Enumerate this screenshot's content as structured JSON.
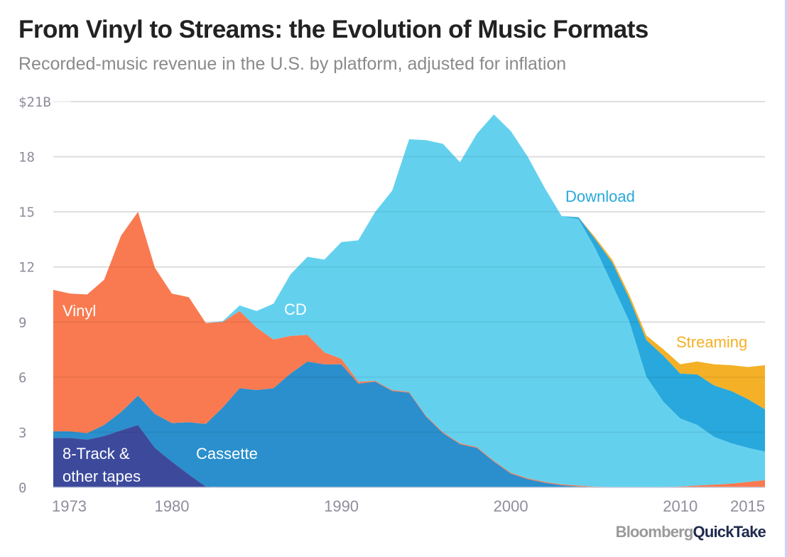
{
  "header": {
    "title": "From Vinyl to Streams: the Evolution of Music Formats",
    "subtitle": "Recorded-music revenue in the U.S. by platform, adjusted for inflation"
  },
  "branding": {
    "bloomberg": "Bloomberg",
    "quicktake": "QuickTake"
  },
  "chart_data": {
    "type": "area",
    "stacked": true,
    "title": "From Vinyl to Streams: the Evolution of Music Formats",
    "subtitle": "Recorded-music revenue in the U.S. by platform, adjusted for inflation",
    "xlabel": "",
    "ylabel": "",
    "xlim": [
      1973,
      2015
    ],
    "ylim": [
      0,
      21
    ],
    "grid": true,
    "y_ticks": [
      {
        "value": 0,
        "label": "0"
      },
      {
        "value": 3,
        "label": "3"
      },
      {
        "value": 6,
        "label": "6"
      },
      {
        "value": 9,
        "label": "9"
      },
      {
        "value": 12,
        "label": "12"
      },
      {
        "value": 15,
        "label": "15"
      },
      {
        "value": 18,
        "label": "18"
      },
      {
        "value": 21,
        "label": "$21B"
      }
    ],
    "x_ticks": [
      {
        "value": 1973,
        "label": "1973"
      },
      {
        "value": 1980,
        "label": "1980"
      },
      {
        "value": 1990,
        "label": "1990"
      },
      {
        "value": 2000,
        "label": "2000"
      },
      {
        "value": 2010,
        "label": "2010"
      },
      {
        "value": 2015,
        "label": "2015"
      }
    ],
    "x": [
      1973,
      1974,
      1975,
      1976,
      1977,
      1978,
      1979,
      1980,
      1981,
      1982,
      1983,
      1984,
      1985,
      1986,
      1987,
      1988,
      1989,
      1990,
      1991,
      1992,
      1993,
      1994,
      1995,
      1996,
      1997,
      1998,
      1999,
      2000,
      2001,
      2002,
      2003,
      2004,
      2005,
      2006,
      2007,
      2008,
      2009,
      2010,
      2011,
      2012,
      2013,
      2014,
      2015
    ],
    "series": [
      {
        "name": "8-Track & other tapes",
        "label_line1": "8-Track &",
        "label_line2": "other tapes",
        "color": "#3d4a9c",
        "label_color": "#ffffff",
        "values": [
          2.7,
          2.7,
          2.6,
          2.8,
          3.1,
          3.4,
          2.15,
          1.4,
          0.7,
          0.05,
          0,
          0,
          0,
          0,
          0,
          0,
          0,
          0,
          0,
          0,
          0,
          0,
          0,
          0,
          0,
          0,
          0,
          0,
          0,
          0,
          0,
          0,
          0,
          0,
          0,
          0,
          0,
          0,
          0,
          0,
          0,
          0,
          0
        ]
      },
      {
        "name": "Cassette",
        "label_line1": "Cassette",
        "color": "#2a8fcc",
        "label_color": "#ffffff",
        "values": [
          0.35,
          0.35,
          0.35,
          0.6,
          1.0,
          1.6,
          1.85,
          2.1,
          2.85,
          3.4,
          4.35,
          5.4,
          5.3,
          5.4,
          6.2,
          6.85,
          6.7,
          6.7,
          5.65,
          5.75,
          5.25,
          5.15,
          3.85,
          2.95,
          2.35,
          2.15,
          1.4,
          0.75,
          0.45,
          0.25,
          0.12,
          0.05,
          0.02,
          0,
          0,
          0,
          0,
          0,
          0,
          0,
          0,
          0,
          0
        ]
      },
      {
        "name": "Vinyl",
        "label_line1": "Vinyl",
        "color": "#f97a50",
        "label_color": "#ffffff",
        "values": [
          7.7,
          7.5,
          7.55,
          7.9,
          9.6,
          10.0,
          7.95,
          7.05,
          6.8,
          5.5,
          4.65,
          4.2,
          3.4,
          2.65,
          2.05,
          1.45,
          0.65,
          0.3,
          0.1,
          0.05,
          0.05,
          0.05,
          0.05,
          0.05,
          0.05,
          0.05,
          0.05,
          0.05,
          0.05,
          0.05,
          0.05,
          0.05,
          0.02,
          0.02,
          0.02,
          0.02,
          0.02,
          0.05,
          0.1,
          0.15,
          0.2,
          0.3,
          0.4
        ]
      },
      {
        "name": "CD",
        "label_line1": "CD",
        "color": "#63d1ee",
        "label_color": "#ffffff",
        "values": [
          0,
          0,
          0,
          0,
          0,
          0,
          0,
          0,
          0,
          0,
          0.05,
          0.3,
          0.9,
          1.95,
          3.35,
          4.25,
          5.05,
          6.35,
          7.7,
          9.2,
          10.85,
          13.75,
          15.0,
          15.7,
          15.3,
          17.05,
          18.85,
          18.6,
          17.5,
          16.0,
          14.6,
          14.5,
          12.95,
          11.0,
          9.0,
          6.0,
          4.65,
          3.7,
          3.3,
          2.6,
          2.2,
          1.85,
          1.55
        ]
      },
      {
        "name": "Download",
        "label_line1": "Download",
        "color": "#28a8dc",
        "label_color": "#28a8dc",
        "values": [
          0,
          0,
          0,
          0,
          0,
          0,
          0,
          0,
          0,
          0,
          0,
          0,
          0,
          0,
          0,
          0,
          0,
          0,
          0,
          0,
          0,
          0,
          0,
          0,
          0,
          0,
          0,
          0,
          0,
          0,
          0,
          0.1,
          0.5,
          1.2,
          1.25,
          2.0,
          2.5,
          2.45,
          2.75,
          2.8,
          2.85,
          2.65,
          2.3
        ]
      },
      {
        "name": "Streaming",
        "label_line1": "Streaming",
        "color": "#f4b026",
        "label_color": "#f4b026",
        "values": [
          0,
          0,
          0,
          0,
          0,
          0,
          0,
          0,
          0,
          0,
          0,
          0,
          0,
          0,
          0,
          0,
          0,
          0,
          0,
          0,
          0,
          0,
          0,
          0,
          0,
          0,
          0,
          0,
          0,
          0,
          0,
          0,
          0.1,
          0.15,
          0.2,
          0.25,
          0.35,
          0.5,
          0.7,
          1.15,
          1.4,
          1.75,
          2.4
        ]
      }
    ]
  }
}
